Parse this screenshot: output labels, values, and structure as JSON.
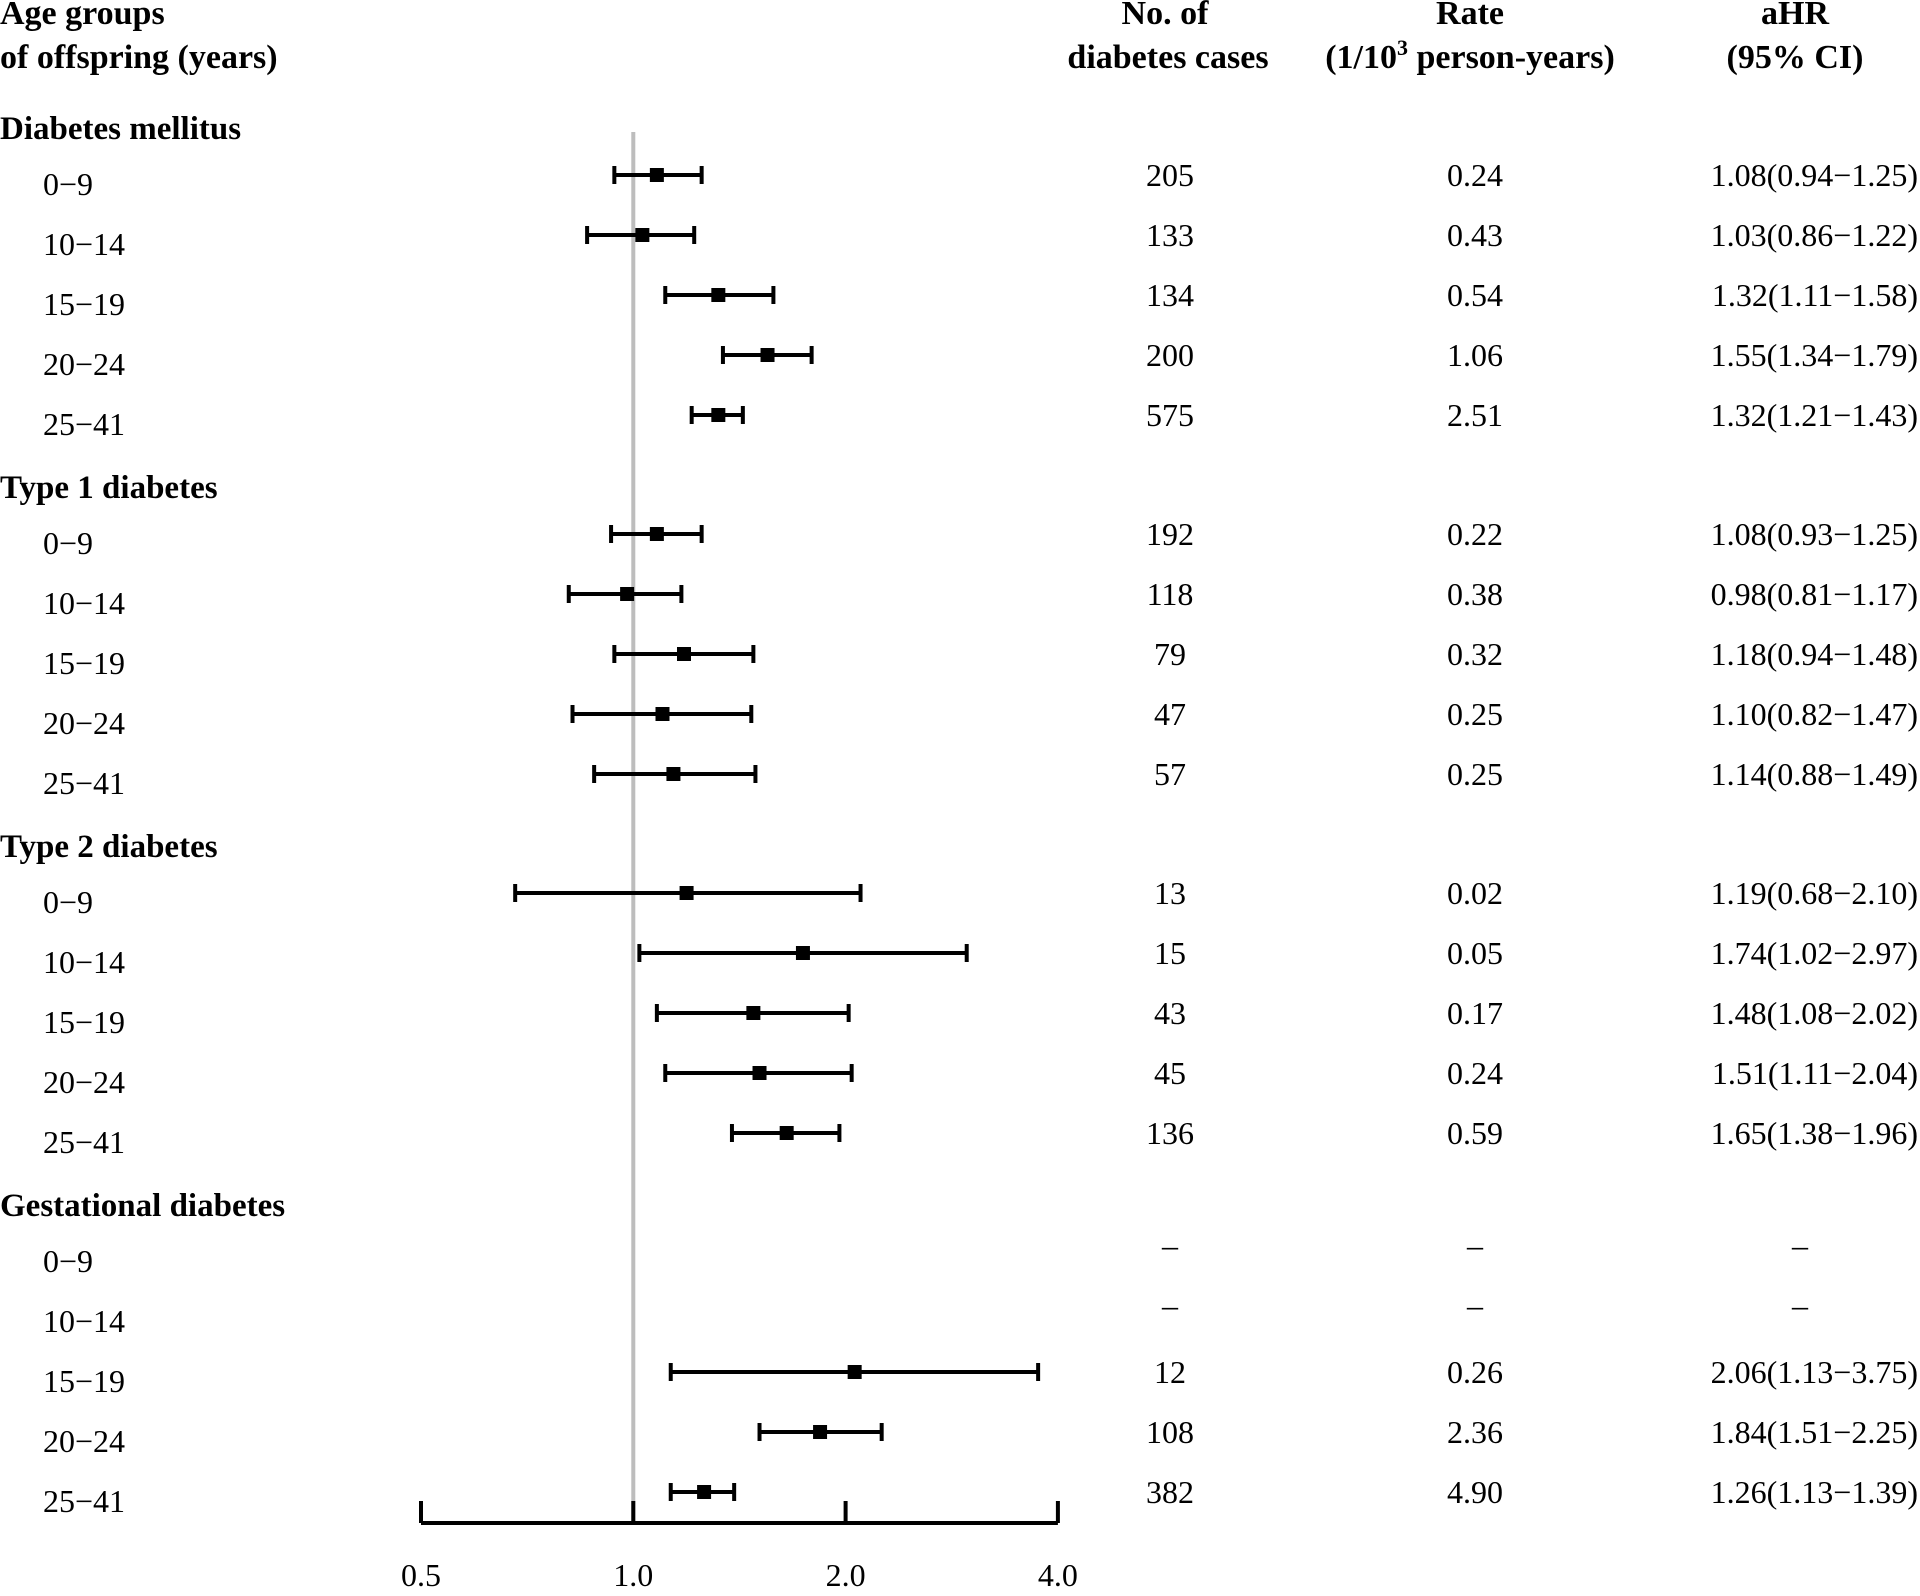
{
  "headers": {
    "age_line1": "Age groups",
    "age_line2": "of offspring (years)",
    "cases_line1": "No. of",
    "cases_line2": "diabetes cases",
    "rate_line1": "Rate",
    "rate_line2_pre": "(1/10",
    "rate_line2_sup": "3",
    "rate_line2_post": " person-years)",
    "ahr_line1": "aHR",
    "ahr_line2": "(95% CI)"
  },
  "chart_data": {
    "type": "forest",
    "x_scale": "log2",
    "xlim": [
      0.5,
      4.0
    ],
    "x_ticks": [
      0.5,
      1.0,
      2.0,
      4.0
    ],
    "x_tick_labels": [
      "0.5",
      "1.0",
      "2.0",
      "4.0"
    ],
    "reference_line": 1.0,
    "groups": [
      {
        "name": "Diabetes mellitus",
        "rows": [
          {
            "age": "0−9",
            "cases": "205",
            "rate": "0.24",
            "ahr_text": "1.08(0.94−1.25)",
            "hr": 1.08,
            "lo": 0.94,
            "hi": 1.25
          },
          {
            "age": "10−14",
            "cases": "133",
            "rate": "0.43",
            "ahr_text": "1.03(0.86−1.22)",
            "hr": 1.03,
            "lo": 0.86,
            "hi": 1.22
          },
          {
            "age": "15−19",
            "cases": "134",
            "rate": "0.54",
            "ahr_text": "1.32(1.11−1.58)",
            "hr": 1.32,
            "lo": 1.11,
            "hi": 1.58
          },
          {
            "age": "20−24",
            "cases": "200",
            "rate": "1.06",
            "ahr_text": "1.55(1.34−1.79)",
            "hr": 1.55,
            "lo": 1.34,
            "hi": 1.79
          },
          {
            "age": "25−41",
            "cases": "575",
            "rate": "2.51",
            "ahr_text": "1.32(1.21−1.43)",
            "hr": 1.32,
            "lo": 1.21,
            "hi": 1.43
          }
        ]
      },
      {
        "name": "Type 1 diabetes",
        "rows": [
          {
            "age": "0−9",
            "cases": "192",
            "rate": "0.22",
            "ahr_text": "1.08(0.93−1.25)",
            "hr": 1.08,
            "lo": 0.93,
            "hi": 1.25
          },
          {
            "age": "10−14",
            "cases": "118",
            "rate": "0.38",
            "ahr_text": "0.98(0.81−1.17)",
            "hr": 0.98,
            "lo": 0.81,
            "hi": 1.17
          },
          {
            "age": "15−19",
            "cases": "79",
            "rate": "0.32",
            "ahr_text": "1.18(0.94−1.48)",
            "hr": 1.18,
            "lo": 0.94,
            "hi": 1.48
          },
          {
            "age": "20−24",
            "cases": "47",
            "rate": "0.25",
            "ahr_text": "1.10(0.82−1.47)",
            "hr": 1.1,
            "lo": 0.82,
            "hi": 1.47
          },
          {
            "age": "25−41",
            "cases": "57",
            "rate": "0.25",
            "ahr_text": "1.14(0.88−1.49)",
            "hr": 1.14,
            "lo": 0.88,
            "hi": 1.49
          }
        ]
      },
      {
        "name": "Type 2 diabetes",
        "rows": [
          {
            "age": "0−9",
            "cases": "13",
            "rate": "0.02",
            "ahr_text": "1.19(0.68−2.10)",
            "hr": 1.19,
            "lo": 0.68,
            "hi": 2.1
          },
          {
            "age": "10−14",
            "cases": "15",
            "rate": "0.05",
            "ahr_text": "1.74(1.02−2.97)",
            "hr": 1.74,
            "lo": 1.02,
            "hi": 2.97
          },
          {
            "age": "15−19",
            "cases": "43",
            "rate": "0.17",
            "ahr_text": "1.48(1.08−2.02)",
            "hr": 1.48,
            "lo": 1.08,
            "hi": 2.02
          },
          {
            "age": "20−24",
            "cases": "45",
            "rate": "0.24",
            "ahr_text": "1.51(1.11−2.04)",
            "hr": 1.51,
            "lo": 1.11,
            "hi": 2.04
          },
          {
            "age": "25−41",
            "cases": "136",
            "rate": "0.59",
            "ahr_text": "1.65(1.38−1.96)",
            "hr": 1.65,
            "lo": 1.38,
            "hi": 1.96
          }
        ]
      },
      {
        "name": "Gestational diabetes",
        "rows": [
          {
            "age": "0−9",
            "cases": "–",
            "rate": "–",
            "ahr_text": "–",
            "hr": null,
            "lo": null,
            "hi": null
          },
          {
            "age": "10−14",
            "cases": "–",
            "rate": "–",
            "ahr_text": "–",
            "hr": null,
            "lo": null,
            "hi": null
          },
          {
            "age": "15−19",
            "cases": "12",
            "rate": "0.26",
            "ahr_text": "2.06(1.13−3.75)",
            "hr": 2.06,
            "lo": 1.13,
            "hi": 3.75
          },
          {
            "age": "20−24",
            "cases": "108",
            "rate": "2.36",
            "ahr_text": "1.84(1.51−2.25)",
            "hr": 1.84,
            "lo": 1.51,
            "hi": 2.25
          },
          {
            "age": "25−41",
            "cases": "382",
            "rate": "4.90",
            "ahr_text": "1.26(1.13−1.39)",
            "hr": 1.26,
            "lo": 1.13,
            "hi": 1.39
          }
        ]
      }
    ]
  },
  "colors": {
    "text": "#000000",
    "reference_line": "#bdbdbd",
    "marker": "#000000"
  }
}
